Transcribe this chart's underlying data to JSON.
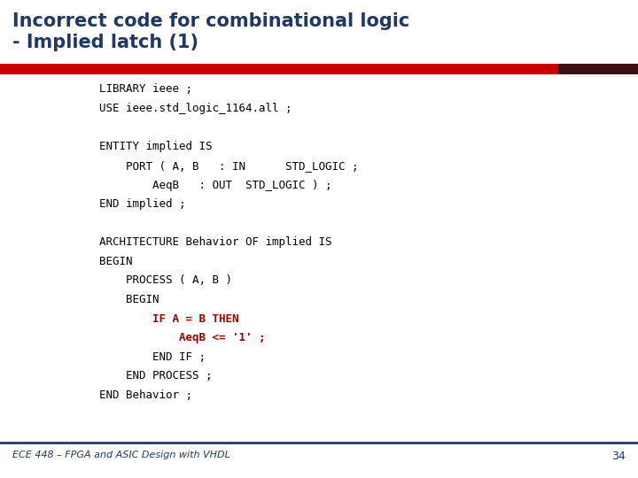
{
  "title_line1": "Incorrect code for combinational logic",
  "title_line2": "- Implied latch (1)",
  "title_color": "#1F3864",
  "title_fontsize": 15,
  "bg_color": "#FFFFFF",
  "red_bar_color": "#CC0000",
  "dark_bar_color": "#3C1010",
  "footer_text": "ECE 448 – FPGA and ASIC Design with VHDL",
  "footer_page": "34",
  "footer_color": "#1F3864",
  "code_color": "#000000",
  "highlight_color": "#990000",
  "code_font_size": 9.0,
  "code_lines": [
    {
      "text": "LIBRARY ieee ;",
      "indent": 0,
      "highlight": false
    },
    {
      "text": "USE ieee.std_logic_1164.all ;",
      "indent": 0,
      "highlight": false
    },
    {
      "text": "",
      "indent": 0,
      "highlight": false
    },
    {
      "text": "ENTITY implied IS",
      "indent": 0,
      "highlight": false
    },
    {
      "text": "PORT ( A, B   : IN      STD_LOGIC ;",
      "indent": 1,
      "highlight": false
    },
    {
      "text": "AeqB   : OUT  STD_LOGIC ) ;",
      "indent": 2,
      "highlight": false
    },
    {
      "text": "END implied ;",
      "indent": 0,
      "highlight": false
    },
    {
      "text": "",
      "indent": 0,
      "highlight": false
    },
    {
      "text": "ARCHITECTURE Behavior OF implied IS",
      "indent": 0,
      "highlight": false
    },
    {
      "text": "BEGIN",
      "indent": 0,
      "highlight": false
    },
    {
      "text": "PROCESS ( A, B )",
      "indent": 1,
      "highlight": false
    },
    {
      "text": "BEGIN",
      "indent": 1,
      "highlight": false
    },
    {
      "text": "IF A = B THEN",
      "indent": 2,
      "highlight": true
    },
    {
      "text": "AeqB <= '1' ;",
      "indent": 3,
      "highlight": true
    },
    {
      "text": "END IF ;",
      "indent": 2,
      "highlight": false
    },
    {
      "text": "END PROCESS ;",
      "indent": 1,
      "highlight": false
    },
    {
      "text": "END Behavior ;",
      "indent": 0,
      "highlight": false
    }
  ]
}
